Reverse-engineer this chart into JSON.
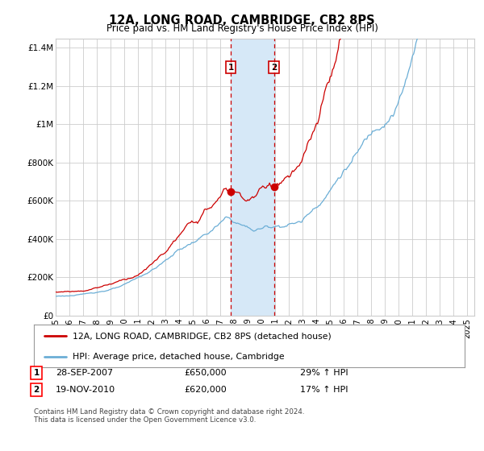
{
  "title": "12A, LONG ROAD, CAMBRIDGE, CB2 8PS",
  "subtitle": "Price paid vs. HM Land Registry's House Price Index (HPI)",
  "legend_line1": "12A, LONG ROAD, CAMBRIDGE, CB2 8PS (detached house)",
  "legend_line2": "HPI: Average price, detached house, Cambridge",
  "sale1_label": "1",
  "sale1_date": "28-SEP-2007",
  "sale1_price": "£650,000",
  "sale1_hpi": "29% ↑ HPI",
  "sale2_label": "2",
  "sale2_date": "19-NOV-2010",
  "sale2_price": "£620,000",
  "sale2_hpi": "17% ↑ HPI",
  "footer": "Contains HM Land Registry data © Crown copyright and database right 2024.\nThis data is licensed under the Open Government Licence v3.0.",
  "red_color": "#cc0000",
  "blue_color": "#6baed6",
  "shade_color": "#d6e8f7",
  "grid_color": "#cccccc",
  "bg_color": "#ffffff",
  "ylim": [
    0,
    1450000
  ],
  "yticks": [
    0,
    200000,
    400000,
    600000,
    800000,
    1000000,
    1200000,
    1400000
  ],
  "ytick_labels": [
    "£0",
    "£200K",
    "£400K",
    "£600K",
    "£800K",
    "£1M",
    "£1.2M",
    "£1.4M"
  ],
  "sale1_x_year": 2007.75,
  "sale2_x_year": 2010.9,
  "xmin": 1995.0,
  "xmax": 2025.5
}
